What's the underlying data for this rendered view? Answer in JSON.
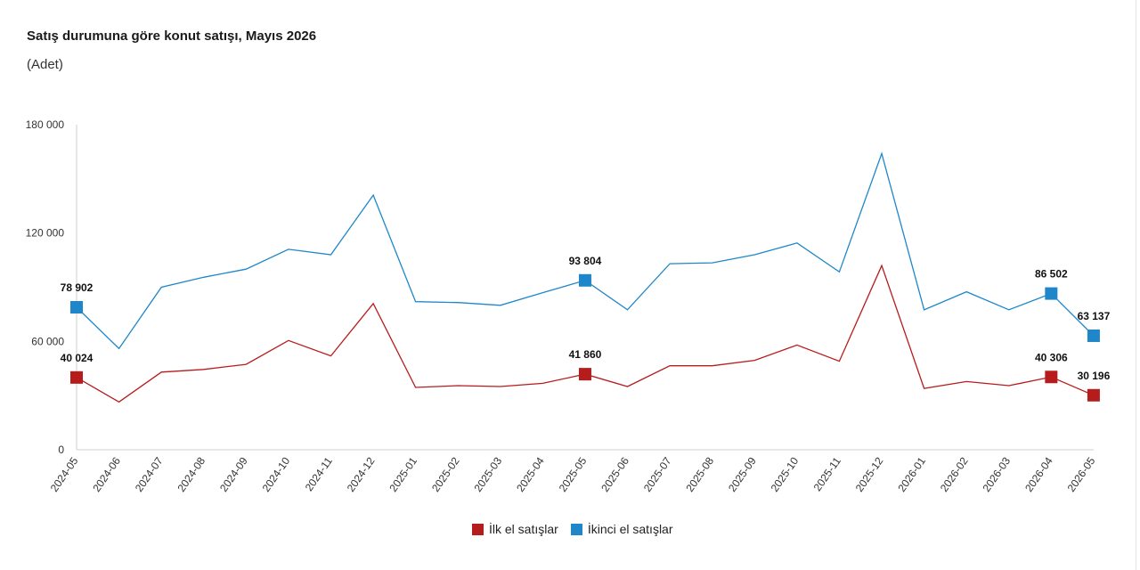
{
  "title": "Satış durumuna göre konut satışı, Mayıs 2026",
  "subtitle": "(Adet)",
  "colors": {
    "first_hand": "#b71c1c",
    "second_hand": "#1f87c9",
    "axis": "#cfcfcf"
  },
  "chart_data": {
    "type": "line",
    "title": "Satış durumuna göre konut satışı, Mayıs 2026",
    "subtitle": "(Adet)",
    "ylim": [
      0,
      180000
    ],
    "yticks": [
      0,
      60000,
      120000,
      180000
    ],
    "ytick_labels": [
      "0",
      "60 000",
      "120 000",
      "180 000"
    ],
    "grid": false,
    "legend_position": "bottom",
    "categories": [
      "2024-05",
      "2024-06",
      "2024-07",
      "2024-08",
      "2024-09",
      "2024-10",
      "2024-11",
      "2024-12",
      "2025-01",
      "2025-02",
      "2025-03",
      "2025-04",
      "2025-05",
      "2025-06",
      "2025-07",
      "2025-08",
      "2025-09",
      "2025-10",
      "2025-11",
      "2025-12",
      "2026-01",
      "2026-02",
      "2026-03",
      "2026-04",
      "2026-05"
    ],
    "series": [
      {
        "name": "İlk el satışlar",
        "color": "#b71c1c",
        "values": [
          40024,
          26500,
          43000,
          44500,
          47300,
          60500,
          52000,
          81000,
          34500,
          35500,
          35000,
          36800,
          41860,
          35000,
          46500,
          46500,
          49500,
          58000,
          49000,
          102000,
          34000,
          37800,
          35500,
          40306,
          30196
        ],
        "labels": {
          "0": "40 024",
          "12": "41 860",
          "23": "40 306",
          "24": "30 196"
        }
      },
      {
        "name": "İkinci el satışlar",
        "color": "#1f87c9",
        "values": [
          78902,
          56000,
          90000,
          95500,
          100000,
          111000,
          108000,
          141000,
          82000,
          81500,
          80000,
          87000,
          93804,
          77500,
          103000,
          103500,
          108000,
          114500,
          98500,
          164000,
          77500,
          87500,
          77500,
          86502,
          63137
        ],
        "labels": {
          "0": "78 902",
          "12": "93 804",
          "23": "86 502",
          "24": "63 137"
        }
      }
    ]
  }
}
